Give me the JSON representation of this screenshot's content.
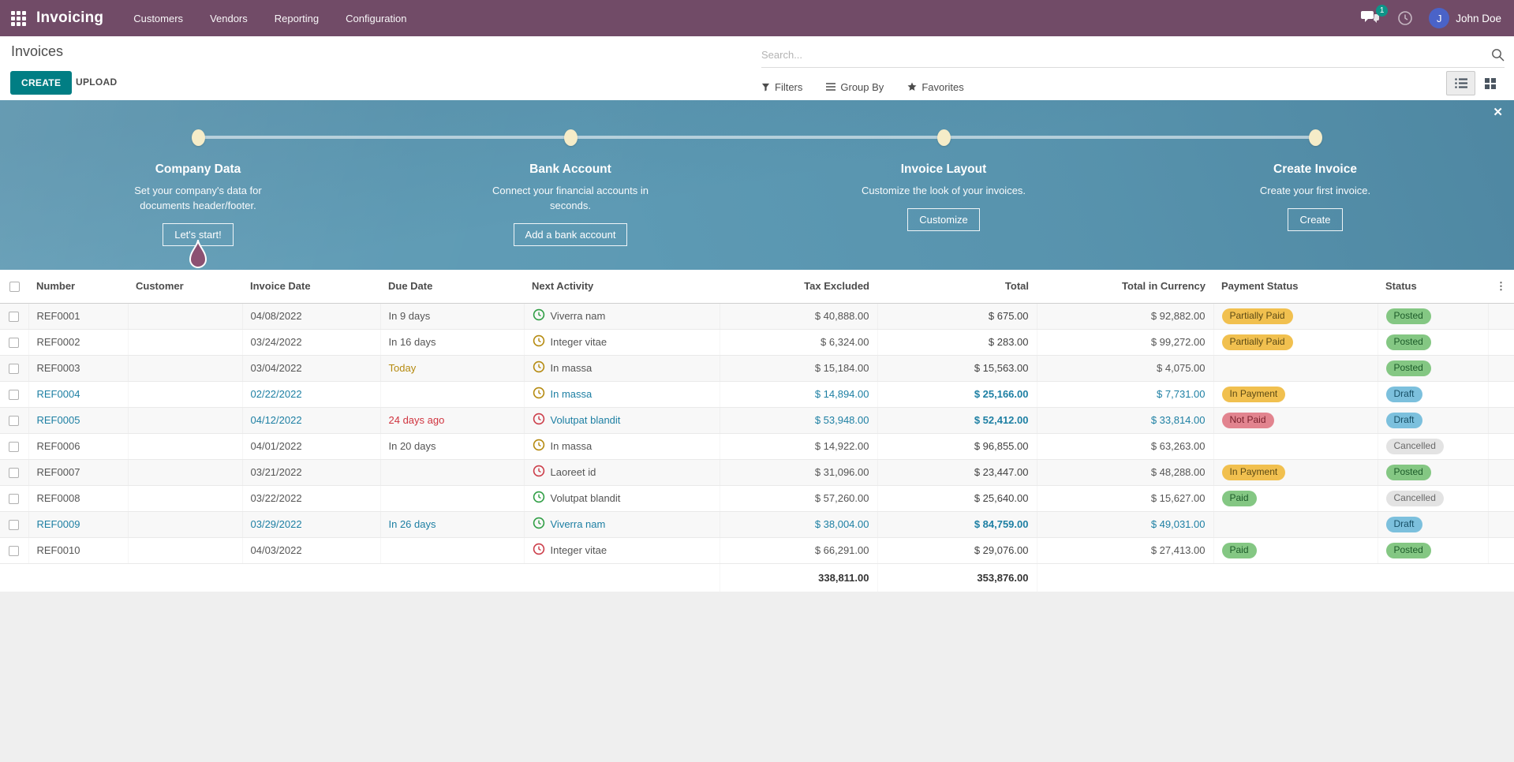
{
  "topbar": {
    "brand": "Invoicing",
    "menus": [
      "Customers",
      "Vendors",
      "Reporting",
      "Configuration"
    ],
    "messages_badge": "1",
    "user_initial": "J",
    "user_name": "John Doe"
  },
  "control": {
    "title": "Invoices",
    "create_label": "CREATE",
    "upload_label": "UPLOAD",
    "search_placeholder": "Search...",
    "filters_label": "Filters",
    "group_by_label": "Group By",
    "favorites_label": "Favorites"
  },
  "onboarding": {
    "close_label": "✕",
    "steps": [
      {
        "title": "Company Data",
        "desc": "Set your company's data for documents header/footer.",
        "button": "Let's start!",
        "marker": true
      },
      {
        "title": "Bank Account",
        "desc": "Connect your financial accounts in seconds.",
        "button": "Add a bank account",
        "marker": false
      },
      {
        "title": "Invoice Layout",
        "desc": "Customize the look of your invoices.",
        "button": "Customize",
        "marker": false
      },
      {
        "title": "Create Invoice",
        "desc": "Create your first invoice.",
        "button": "Create",
        "marker": false
      }
    ]
  },
  "table": {
    "columns": [
      "Number",
      "Customer",
      "Invoice Date",
      "Due Date",
      "Next Activity",
      "Tax Excluded",
      "Total",
      "Total in Currency",
      "Payment Status",
      "Status"
    ],
    "rows": [
      {
        "number": "REF0001",
        "customer": "",
        "invoice_date": "04/08/2022",
        "due_date": "In 9 days",
        "due_style": "normal",
        "activity": "Viverra nam",
        "activity_color": "green",
        "tax_excluded": "$ 40,888.00",
        "total": "$ 675.00",
        "total_currency": "$ 92,882.00",
        "payment_status": "Partially Paid",
        "payment_style": "warning",
        "status": "Posted",
        "status_style": "success",
        "draft": false
      },
      {
        "number": "REF0002",
        "customer": "",
        "invoice_date": "03/24/2022",
        "due_date": "In 16 days",
        "due_style": "normal",
        "activity": "Integer vitae",
        "activity_color": "yellow",
        "tax_excluded": "$ 6,324.00",
        "total": "$ 283.00",
        "total_currency": "$ 99,272.00",
        "payment_status": "Partially Paid",
        "payment_style": "warning",
        "status": "Posted",
        "status_style": "success",
        "draft": false
      },
      {
        "number": "REF0003",
        "customer": "",
        "invoice_date": "03/04/2022",
        "due_date": "Today",
        "due_style": "today",
        "activity": "In massa",
        "activity_color": "yellow",
        "tax_excluded": "$ 15,184.00",
        "total": "$ 15,563.00",
        "total_currency": "$ 4,075.00",
        "payment_status": "",
        "payment_style": "",
        "status": "Posted",
        "status_style": "success",
        "draft": false
      },
      {
        "number": "REF0004",
        "customer": "",
        "invoice_date": "02/22/2022",
        "due_date": "",
        "due_style": "normal",
        "activity": "In massa",
        "activity_color": "yellow",
        "tax_excluded": "$ 14,894.00",
        "total": "$ 25,166.00",
        "total_currency": "$ 7,731.00",
        "payment_status": "In Payment",
        "payment_style": "warning",
        "status": "Draft",
        "status_style": "info",
        "draft": true
      },
      {
        "number": "REF0005",
        "customer": "",
        "invoice_date": "04/12/2022",
        "due_date": "24 days ago",
        "due_style": "overdue",
        "activity": "Volutpat blandit",
        "activity_color": "red",
        "tax_excluded": "$ 53,948.00",
        "total": "$ 52,412.00",
        "total_currency": "$ 33,814.00",
        "payment_status": "Not Paid",
        "payment_style": "danger",
        "status": "Draft",
        "status_style": "info",
        "draft": true
      },
      {
        "number": "REF0006",
        "customer": "",
        "invoice_date": "04/01/2022",
        "due_date": "In 20 days",
        "due_style": "normal",
        "activity": "In massa",
        "activity_color": "yellow",
        "tax_excluded": "$ 14,922.00",
        "total": "$ 96,855.00",
        "total_currency": "$ 63,263.00",
        "payment_status": "",
        "payment_style": "",
        "status": "Cancelled",
        "status_style": "muted",
        "draft": false
      },
      {
        "number": "REF0007",
        "customer": "",
        "invoice_date": "03/21/2022",
        "due_date": "",
        "due_style": "normal",
        "activity": "Laoreet id",
        "activity_color": "red",
        "tax_excluded": "$ 31,096.00",
        "total": "$ 23,447.00",
        "total_currency": "$ 48,288.00",
        "payment_status": "In Payment",
        "payment_style": "warning",
        "status": "Posted",
        "status_style": "success",
        "draft": false
      },
      {
        "number": "REF0008",
        "customer": "",
        "invoice_date": "03/22/2022",
        "due_date": "",
        "due_style": "normal",
        "activity": "Volutpat blandit",
        "activity_color": "green",
        "tax_excluded": "$ 57,260.00",
        "total": "$ 25,640.00",
        "total_currency": "$ 15,627.00",
        "payment_status": "Paid",
        "payment_style": "success",
        "status": "Cancelled",
        "status_style": "muted",
        "draft": false
      },
      {
        "number": "REF0009",
        "customer": "",
        "invoice_date": "03/29/2022",
        "due_date": "In 26 days",
        "due_style": "normal",
        "activity": "Viverra nam",
        "activity_color": "green",
        "tax_excluded": "$ 38,004.00",
        "total": "$ 84,759.00",
        "total_currency": "$ 49,031.00",
        "payment_status": "",
        "payment_style": "",
        "status": "Draft",
        "status_style": "info",
        "draft": true
      },
      {
        "number": "REF0010",
        "customer": "",
        "invoice_date": "04/03/2022",
        "due_date": "",
        "due_style": "normal",
        "activity": "Integer vitae",
        "activity_color": "red",
        "tax_excluded": "$ 66,291.00",
        "total": "$ 29,076.00",
        "total_currency": "$ 27,413.00",
        "payment_status": "Paid",
        "payment_style": "success",
        "status": "Posted",
        "status_style": "success",
        "draft": false
      }
    ],
    "totals": {
      "tax_excluded": "338,811.00",
      "total": "353,876.00"
    }
  },
  "colors": {
    "topbar_purple": "#714B67",
    "primary_teal": "#017E84",
    "banner_blue": "#5D9AB4",
    "draft_accent": "#1D7FA3",
    "today_amber": "#B58A0F",
    "overdue_red": "#D0343F",
    "pill_warning": "#F1C04F",
    "pill_danger": "#E2848F",
    "pill_success": "#84C783",
    "pill_info": "#7CC0DD",
    "pill_muted": "#E3E3E3",
    "marker_pin": "#8C5172"
  }
}
